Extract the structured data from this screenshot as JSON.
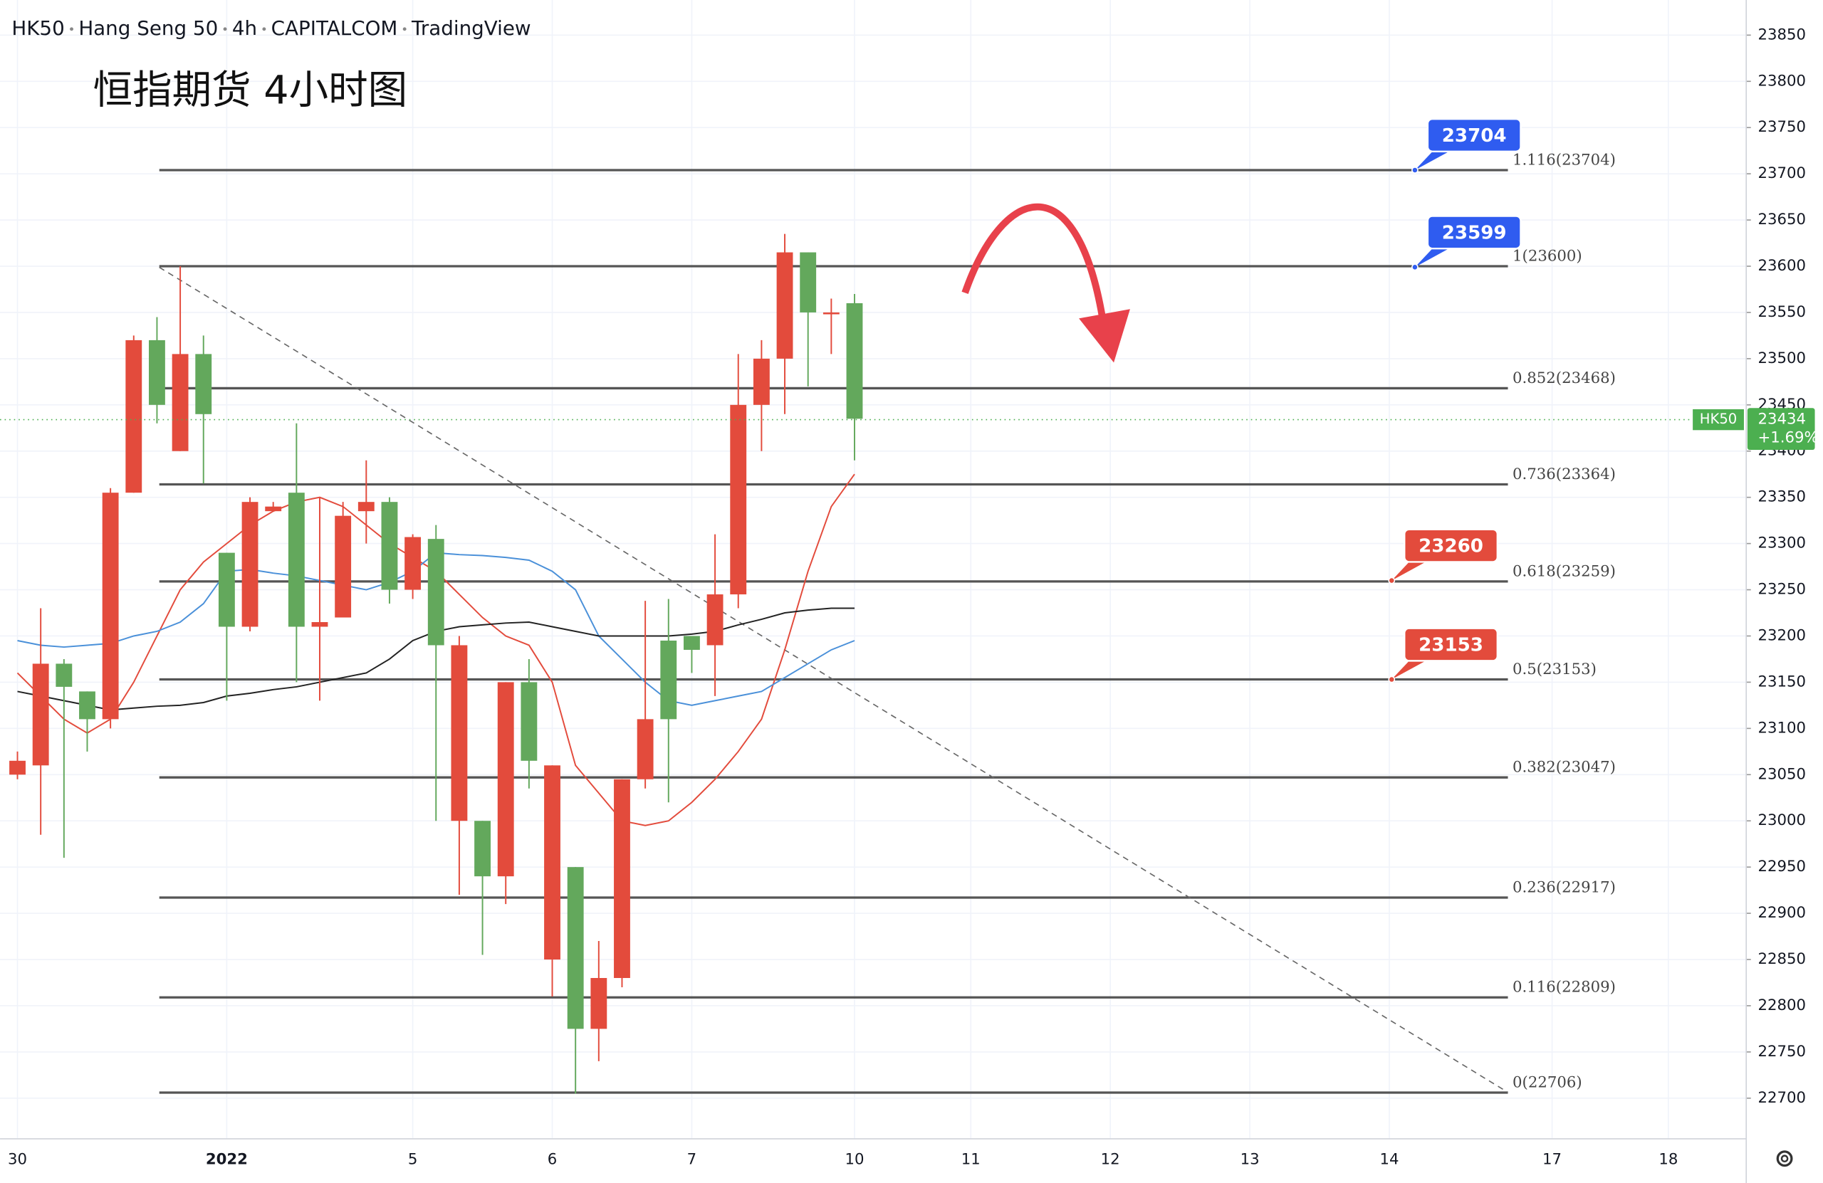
{
  "chart_data": {
    "type": "candlestick",
    "header": [
      "HK50",
      "Hang Seng 50",
      "4h",
      "CAPITALCOM",
      "TradingView"
    ],
    "title": "恒指期货 4小时图",
    "x": [
      0,
      1,
      2,
      3,
      4,
      5,
      6,
      7,
      8,
      9,
      10,
      11,
      12,
      13,
      14,
      15,
      16,
      17,
      18,
      19,
      20,
      21,
      22,
      23,
      24,
      25,
      26,
      27,
      28,
      29,
      30,
      31,
      32,
      33,
      34,
      35,
      36
    ],
    "open": [
      23065,
      23170,
      23145,
      23110,
      23355,
      23520,
      23450,
      23505,
      23440,
      23210,
      23345,
      23340,
      23210,
      23215,
      23330,
      23345,
      23250,
      23307,
      23190,
      23190,
      22940,
      23150,
      23065,
      23060,
      22775,
      22830,
      23045,
      23110,
      23110,
      23185,
      23245,
      23450,
      23500,
      23615,
      23550,
      23550,
      23435
    ],
    "high": [
      23075,
      23230,
      23175,
      23140,
      23360,
      23525,
      23545,
      23600,
      23525,
      23290,
      23350,
      23345,
      23430,
      23350,
      23345,
      23390,
      23350,
      23310,
      23320,
      23200,
      23000,
      23150,
      23175,
      23060,
      22950,
      22870,
      23045,
      23238,
      23240,
      23200,
      23310,
      23505,
      23520,
      23635,
      23615,
      23565,
      23570
    ],
    "low": [
      23045,
      22985,
      22960,
      23075,
      23100,
      23355,
      23430,
      23400,
      23365,
      23130,
      23205,
      23335,
      23150,
      23130,
      23220,
      23300,
      23235,
      23240,
      23000,
      22920,
      22855,
      22910,
      23035,
      22810,
      22705,
      22740,
      22820,
      23035,
      23020,
      23160,
      23135,
      23230,
      23400,
      23440,
      23470,
      23505,
      23390
    ],
    "close": [
      23050,
      23060,
      23170,
      23140,
      23110,
      23355,
      23520,
      23400,
      23505,
      23290,
      23210,
      23335,
      23355,
      23210,
      23220,
      23335,
      23345,
      23250,
      23305,
      23000,
      23000,
      22940,
      23150,
      22850,
      22950,
      22775,
      22830,
      23045,
      23195,
      23200,
      23190,
      23245,
      23450,
      23500,
      23615,
      23548,
      23560
    ],
    "up_color": "#63a85c",
    "down_color": "#e34b3c",
    "series": [
      {
        "color": "#e34b3c",
        "values": [
          23160,
          23135,
          23110,
          23095,
          23110,
          23150,
          23200,
          23250,
          23280,
          23300,
          23320,
          23335,
          23345,
          23350,
          23340,
          23320,
          23300,
          23285,
          23270,
          23245,
          23220,
          23200,
          23190,
          23150,
          23060,
          23030,
          23000,
          22995,
          23000,
          23020,
          23045,
          23075,
          23110,
          23185,
          23270,
          23340,
          23375
        ]
      },
      {
        "color": "#4a90d9",
        "values": [
          23195,
          23190,
          23188,
          23190,
          23192,
          23200,
          23205,
          23215,
          23235,
          23270,
          23272,
          23268,
          23265,
          23260,
          23255,
          23250,
          23258,
          23270,
          23290,
          23288,
          23287,
          23285,
          23282,
          23270,
          23250,
          23200,
          23175,
          23150,
          23130,
          23125,
          23130,
          23135,
          23140,
          23155,
          23170,
          23185,
          23195
        ]
      },
      {
        "color": "#222222",
        "values": [
          23140,
          23135,
          23130,
          23125,
          23120,
          23122,
          23124,
          23125,
          23128,
          23135,
          23138,
          23142,
          23145,
          23150,
          23155,
          23160,
          23175,
          23195,
          23205,
          23210,
          23212,
          23214,
          23215,
          23210,
          23205,
          23200,
          23200,
          23200,
          23200,
          23202,
          23205,
          23212,
          23218,
          23225,
          23228,
          23230,
          23230
        ]
      }
    ],
    "fib_levels": [
      {
        "value": 23704,
        "label": "1.116(23704)"
      },
      {
        "value": 23600,
        "label": "1(23600)"
      },
      {
        "value": 23468,
        "label": "0.852(23468)"
      },
      {
        "value": 23364,
        "label": "0.736(23364)"
      },
      {
        "value": 23259,
        "label": "0.618(23259)"
      },
      {
        "value": 23153,
        "label": "0.5(23153)"
      },
      {
        "value": 23047,
        "label": "0.382(23047)"
      },
      {
        "value": 22917,
        "label": "0.236(22917)"
      },
      {
        "value": 22809,
        "label": "0.116(22809)"
      },
      {
        "value": 22706,
        "label": "0(22706)"
      }
    ],
    "callouts": [
      {
        "value": 23704,
        "color": "#2f5cf0"
      },
      {
        "value": 23599,
        "color": "#2f5cf0"
      },
      {
        "value": 23260,
        "color": "#e34b3c"
      },
      {
        "value": 23153,
        "color": "#e34b3c"
      }
    ],
    "last_price": {
      "symbol": "HK50",
      "value": 23434,
      "change": 1.69,
      "change_label": "+1.69%",
      "color": "#4caf50"
    },
    "ylim": [
      22656,
      23888
    ],
    "yticks": [
      22700,
      22750,
      22800,
      22850,
      22900,
      22950,
      23000,
      23050,
      23100,
      23150,
      23200,
      23250,
      23300,
      23350,
      23400,
      23450,
      23500,
      23550,
      23600,
      23650,
      23700,
      23750,
      23800,
      23850
    ],
    "xticks": [
      {
        "value": 0,
        "label": "30"
      },
      {
        "value": 9,
        "label": "2022"
      },
      {
        "value": 17,
        "label": "5"
      },
      {
        "value": 23,
        "label": "6"
      },
      {
        "value": 29,
        "label": "7"
      },
      {
        "value": 36,
        "label": "10"
      },
      {
        "value": 41,
        "label": "11"
      },
      {
        "value": 47,
        "label": "12"
      },
      {
        "value": 53,
        "label": "13"
      },
      {
        "value": 59,
        "label": "14"
      },
      {
        "value": 66,
        "label": "17"
      },
      {
        "value": 71,
        "label": "18"
      }
    ],
    "grid": true
  }
}
